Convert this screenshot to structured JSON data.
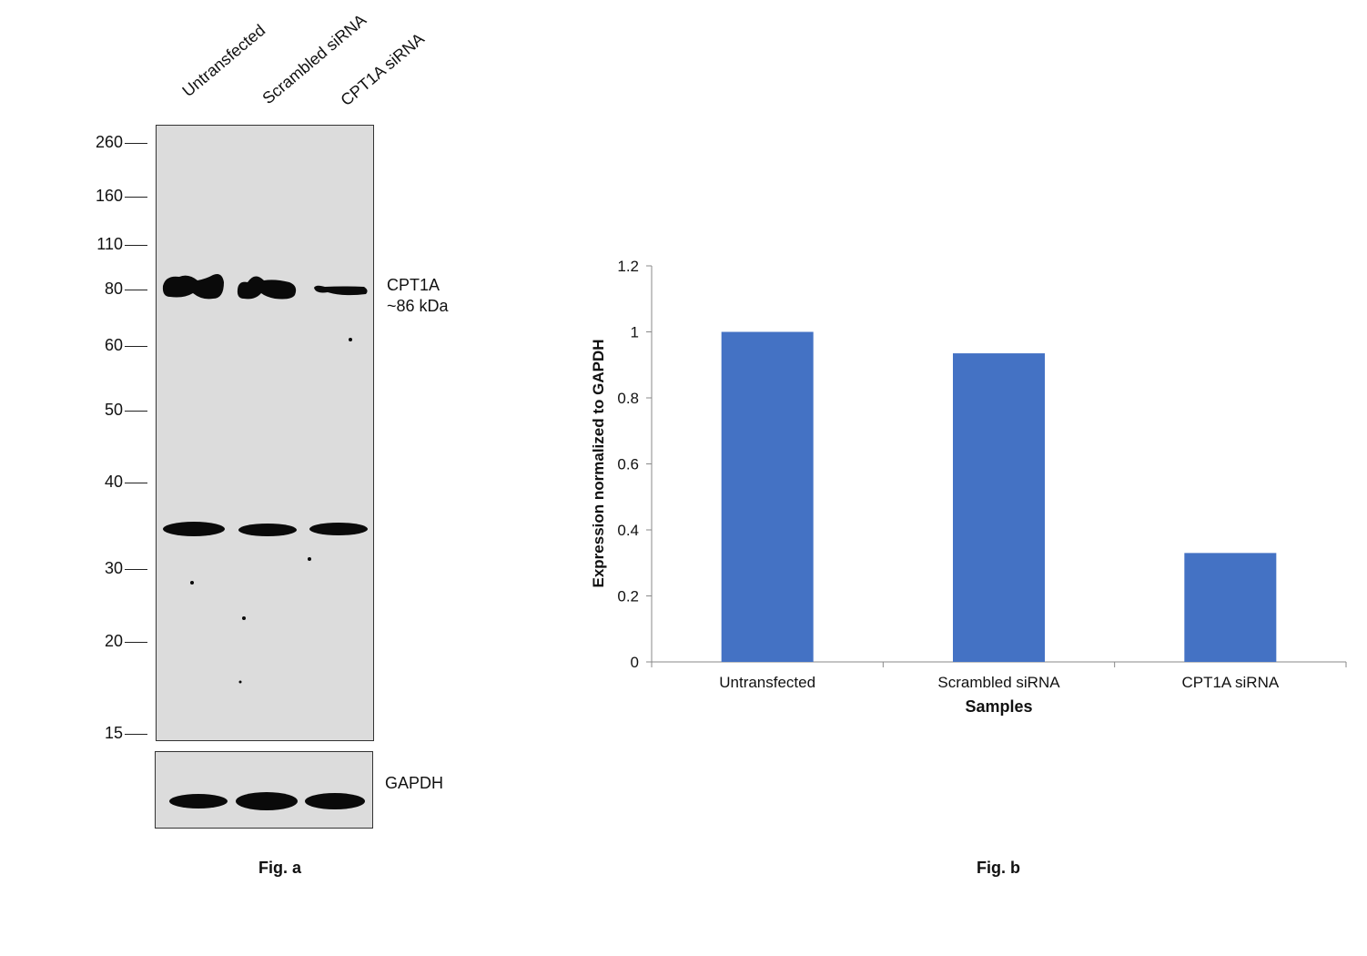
{
  "fig_a": {
    "caption": "Fig. a",
    "lanes": [
      "Untransfected",
      "Scrambled siRNA",
      "CPT1A siRNA"
    ],
    "markers": [
      "260",
      "160",
      "110",
      "80",
      "60",
      "50",
      "40",
      "30",
      "20",
      "15"
    ],
    "target_label": "CPT1A",
    "target_size": "~86 kDa",
    "loading_control": "GAPDH"
  },
  "chart_data": {
    "type": "bar",
    "title": "",
    "caption": "Fig. b",
    "xlabel": "Samples",
    "ylabel": "Expression normalized to GAPDH",
    "categories": [
      "Untransfected",
      "Scrambled siRNA",
      "CPT1A siRNA"
    ],
    "values": [
      1.0,
      0.935,
      0.33
    ],
    "ylim": [
      0,
      1.2
    ],
    "yticks": [
      "0",
      "0.2",
      "0.4",
      "0.6",
      "0.8",
      "1",
      "1.2"
    ],
    "grid": false,
    "bar_color": "#4472c4"
  }
}
